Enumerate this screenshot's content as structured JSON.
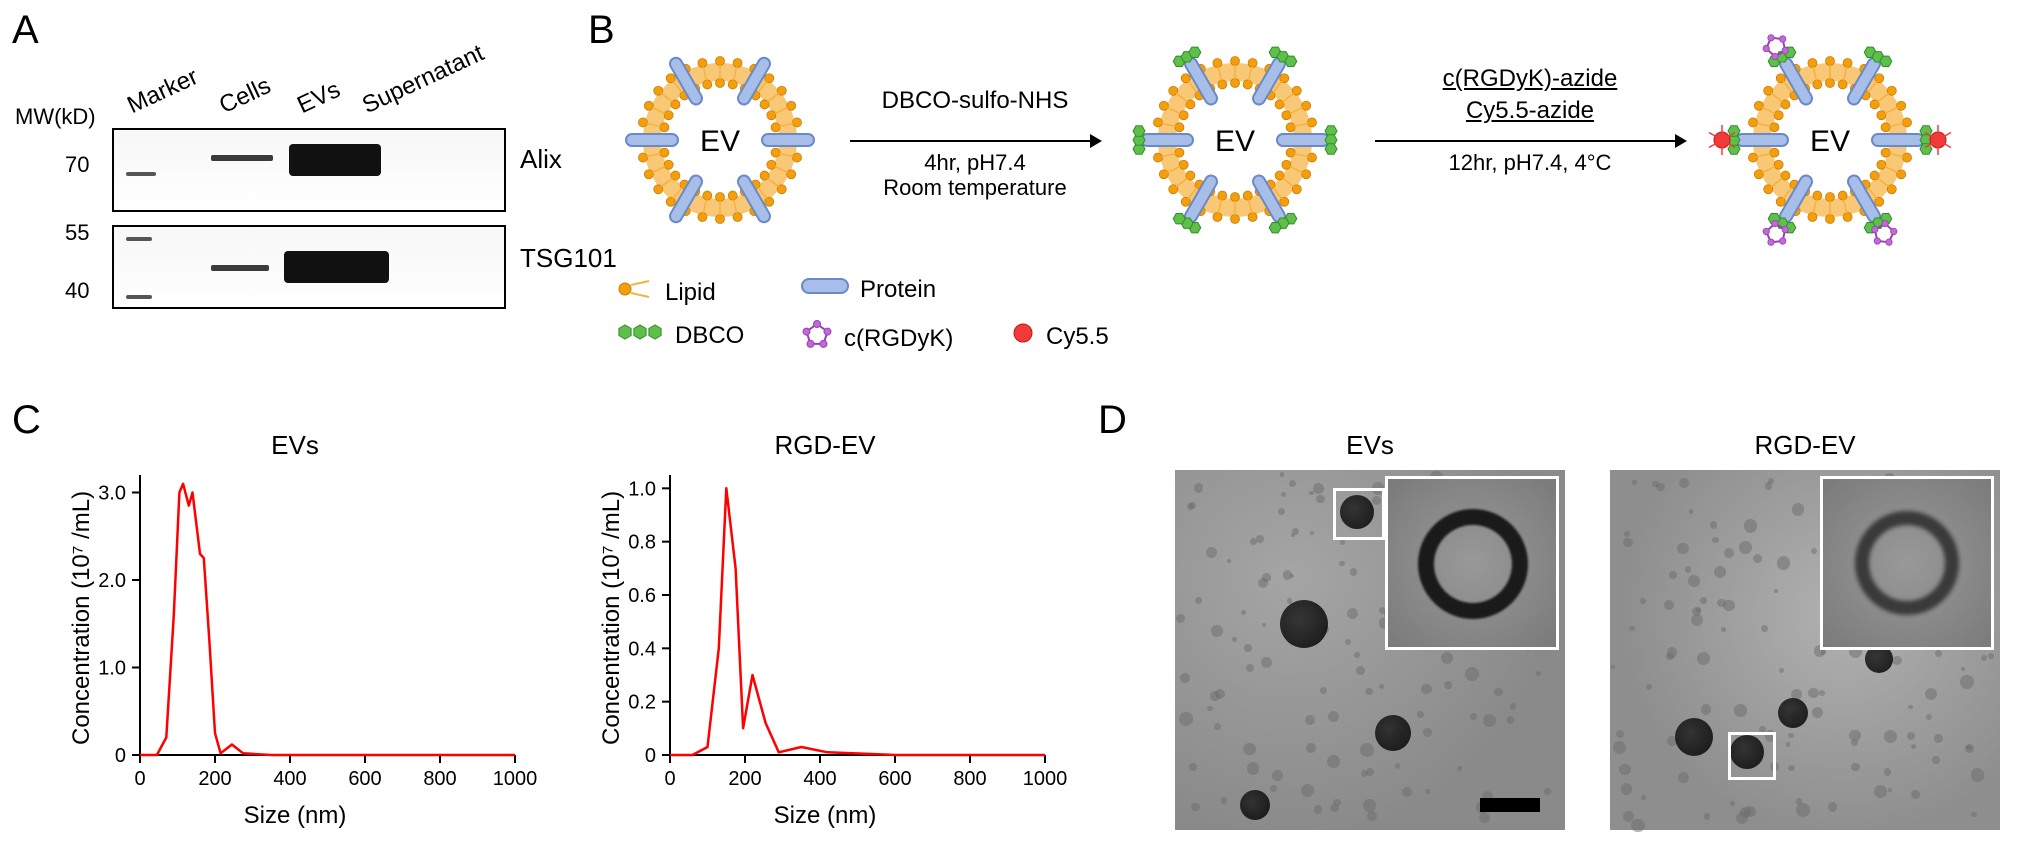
{
  "panel_labels": {
    "A": "A",
    "B": "B",
    "C": "C",
    "D": "D"
  },
  "A": {
    "mw_header": "MW(kD)",
    "lanes": [
      "Marker",
      "Cells",
      "EVs",
      "Supernatant"
    ],
    "rows": [
      {
        "mw": "70",
        "name": "Alix"
      },
      {
        "mw_top": "55",
        "mw_bot": "40",
        "name": "TSG101"
      }
    ]
  },
  "B": {
    "ev_label": "EV",
    "step1": {
      "top": "DBCO-sulfo-NHS",
      "mid": "4hr, pH7.4",
      "bot": "Room temperature"
    },
    "step2": {
      "top": "c(RGDyK)-azide",
      "mid": "Cy5.5-azide",
      "bot": "12hr, pH7.4, 4°C"
    },
    "legend": [
      {
        "name": "Lipid",
        "kind": "lipid"
      },
      {
        "name": "Protein",
        "kind": "protein"
      },
      {
        "name": "DBCO",
        "kind": "dbco"
      },
      {
        "name": "c(RGDyK)",
        "kind": "rgd"
      },
      {
        "name": "Cy5.5",
        "kind": "cy"
      }
    ],
    "colors": {
      "lipid": "#f59e0b",
      "lipid_tail": "#f6b13d",
      "protein_fill": "#a7bfe8",
      "protein_stroke": "#6a89c9",
      "dbco": "#5fbf4b",
      "dbco_stroke": "#2f8f24",
      "rgd": "#c06ad6",
      "rgd_stroke": "#9a3eb6",
      "cy": "#f23a3a",
      "cy_stroke": "#c31616",
      "ray": "#f23a3a"
    }
  },
  "C": {
    "charts": [
      {
        "title": "EVs",
        "type": "line",
        "ylabel": "Concentration (10⁷ /mL)",
        "xlabel": "Size (nm)",
        "xlim": [
          0,
          1000
        ],
        "ylim": [
          0,
          3.2
        ],
        "xticks": [
          0,
          200,
          400,
          600,
          800,
          1000
        ],
        "yticks": [
          0,
          1.0,
          2.0,
          3.0
        ],
        "line_color": "#ff0000",
        "line_width": 2.5,
        "background": "#ffffff",
        "axis_color": "#000",
        "tick_len": 8,
        "points": [
          [
            0,
            0
          ],
          [
            45,
            0
          ],
          [
            70,
            0.2
          ],
          [
            90,
            1.6
          ],
          [
            105,
            3.0
          ],
          [
            115,
            3.1
          ],
          [
            130,
            2.85
          ],
          [
            140,
            3.0
          ],
          [
            160,
            2.3
          ],
          [
            170,
            2.25
          ],
          [
            185,
            1.3
          ],
          [
            200,
            0.25
          ],
          [
            215,
            0.02
          ],
          [
            245,
            0.12
          ],
          [
            275,
            0.02
          ],
          [
            350,
            0
          ],
          [
            700,
            0
          ],
          [
            1000,
            0
          ]
        ]
      },
      {
        "title": "RGD-EV",
        "type": "line",
        "ylabel": "Concentration (10⁷ /mL)",
        "xlabel": "Size (nm)",
        "xlim": [
          0,
          1000
        ],
        "ylim": [
          0,
          1.05
        ],
        "xticks": [
          0,
          200,
          400,
          600,
          800,
          1000
        ],
        "yticks": [
          0,
          0.2,
          0.4,
          0.6,
          0.8,
          1.0
        ],
        "line_color": "#ff0000",
        "line_width": 2.5,
        "background": "#ffffff",
        "axis_color": "#000",
        "tick_len": 8,
        "points": [
          [
            0,
            0
          ],
          [
            60,
            0
          ],
          [
            100,
            0.03
          ],
          [
            130,
            0.4
          ],
          [
            150,
            1.0
          ],
          [
            175,
            0.7
          ],
          [
            195,
            0.1
          ],
          [
            220,
            0.3
          ],
          [
            255,
            0.12
          ],
          [
            290,
            0.01
          ],
          [
            350,
            0.03
          ],
          [
            420,
            0.01
          ],
          [
            600,
            0
          ],
          [
            1000,
            0
          ]
        ]
      }
    ],
    "fontsize": {
      "title": 26,
      "axis": 24,
      "tick": 20
    }
  },
  "D": {
    "cols": [
      {
        "title": "EVs"
      },
      {
        "title": "RGD-EV"
      }
    ]
  }
}
